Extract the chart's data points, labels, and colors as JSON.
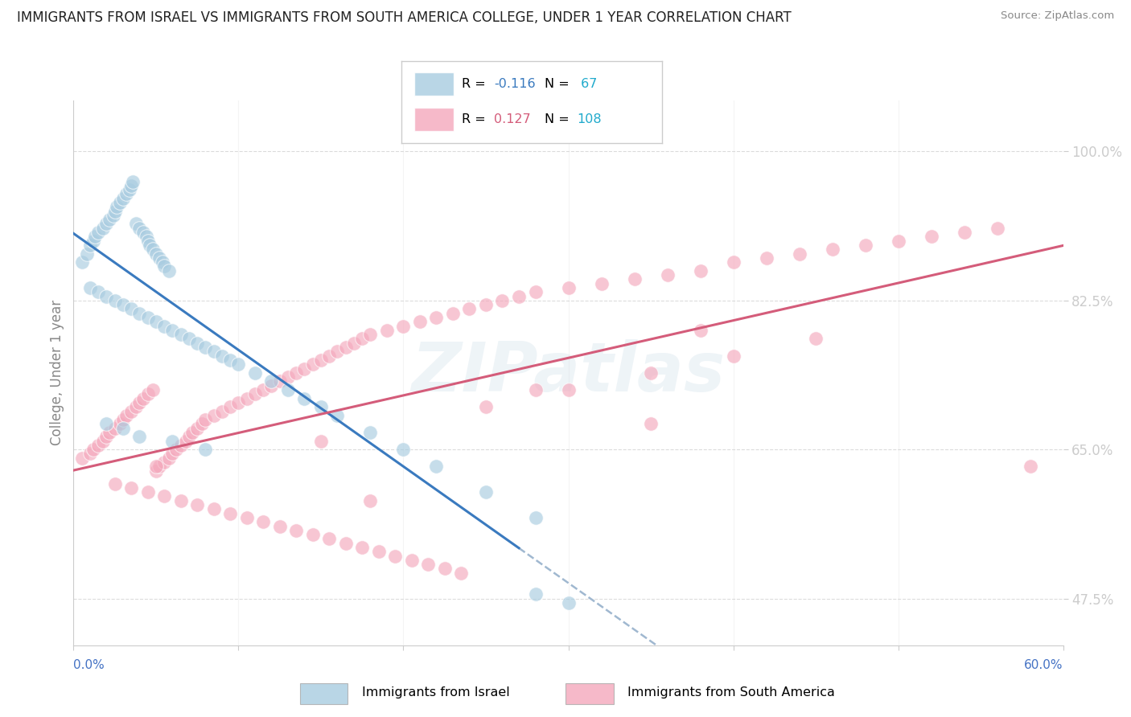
{
  "title": "IMMIGRANTS FROM ISRAEL VS IMMIGRANTS FROM SOUTH AMERICA COLLEGE, UNDER 1 YEAR CORRELATION CHART",
  "source": "Source: ZipAtlas.com",
  "ylabel": "College, Under 1 year",
  "yticks": [
    "47.5%",
    "65.0%",
    "82.5%",
    "100.0%"
  ],
  "ytick_values": [
    0.475,
    0.65,
    0.825,
    1.0
  ],
  "xlim": [
    0.0,
    0.6
  ],
  "ylim": [
    0.42,
    1.06
  ],
  "legend_blue_r": "-0.116",
  "legend_blue_n": "67",
  "legend_pink_r": "0.127",
  "legend_pink_n": "108",
  "blue_color": "#a8cce0",
  "pink_color": "#f4a8bc",
  "blue_line_color": "#3a7abf",
  "pink_line_color": "#d45c7a",
  "blue_dash_color": "#a0b8d0",
  "watermark_text": "ZIPatlas",
  "blue_scatter_x": [
    0.005,
    0.008,
    0.01,
    0.012,
    0.013,
    0.015,
    0.018,
    0.02,
    0.022,
    0.024,
    0.025,
    0.026,
    0.028,
    0.03,
    0.032,
    0.034,
    0.035,
    0.036,
    0.038,
    0.04,
    0.042,
    0.044,
    0.045,
    0.046,
    0.048,
    0.05,
    0.052,
    0.054,
    0.055,
    0.058,
    0.01,
    0.015,
    0.02,
    0.025,
    0.03,
    0.035,
    0.04,
    0.045,
    0.05,
    0.055,
    0.06,
    0.065,
    0.07,
    0.075,
    0.08,
    0.085,
    0.09,
    0.095,
    0.1,
    0.11,
    0.12,
    0.13,
    0.14,
    0.15,
    0.16,
    0.18,
    0.2,
    0.22,
    0.25,
    0.28,
    0.02,
    0.03,
    0.04,
    0.06,
    0.08,
    0.28,
    0.3
  ],
  "blue_scatter_y": [
    0.87,
    0.88,
    0.89,
    0.895,
    0.9,
    0.905,
    0.91,
    0.915,
    0.92,
    0.925,
    0.93,
    0.935,
    0.94,
    0.945,
    0.95,
    0.955,
    0.96,
    0.965,
    0.915,
    0.91,
    0.905,
    0.9,
    0.895,
    0.89,
    0.885,
    0.88,
    0.875,
    0.87,
    0.865,
    0.86,
    0.84,
    0.835,
    0.83,
    0.825,
    0.82,
    0.815,
    0.81,
    0.805,
    0.8,
    0.795,
    0.79,
    0.785,
    0.78,
    0.775,
    0.77,
    0.765,
    0.76,
    0.755,
    0.75,
    0.74,
    0.73,
    0.72,
    0.71,
    0.7,
    0.69,
    0.67,
    0.65,
    0.63,
    0.6,
    0.57,
    0.68,
    0.675,
    0.665,
    0.66,
    0.65,
    0.48,
    0.47
  ],
  "pink_scatter_x": [
    0.005,
    0.01,
    0.012,
    0.015,
    0.018,
    0.02,
    0.022,
    0.025,
    0.028,
    0.03,
    0.032,
    0.035,
    0.038,
    0.04,
    0.042,
    0.045,
    0.048,
    0.05,
    0.052,
    0.055,
    0.058,
    0.06,
    0.062,
    0.065,
    0.068,
    0.07,
    0.072,
    0.075,
    0.078,
    0.08,
    0.085,
    0.09,
    0.095,
    0.1,
    0.105,
    0.11,
    0.115,
    0.12,
    0.125,
    0.13,
    0.135,
    0.14,
    0.145,
    0.15,
    0.155,
    0.16,
    0.165,
    0.17,
    0.175,
    0.18,
    0.19,
    0.2,
    0.21,
    0.22,
    0.23,
    0.24,
    0.25,
    0.26,
    0.27,
    0.28,
    0.3,
    0.32,
    0.34,
    0.36,
    0.38,
    0.4,
    0.42,
    0.44,
    0.46,
    0.48,
    0.5,
    0.52,
    0.54,
    0.56,
    0.025,
    0.035,
    0.045,
    0.055,
    0.065,
    0.075,
    0.085,
    0.095,
    0.105,
    0.115,
    0.125,
    0.135,
    0.145,
    0.155,
    0.165,
    0.175,
    0.185,
    0.195,
    0.205,
    0.215,
    0.225,
    0.235,
    0.3,
    0.35,
    0.4,
    0.45,
    0.35,
    0.25,
    0.15,
    0.05,
    0.58,
    0.18,
    0.38,
    0.28
  ],
  "pink_scatter_y": [
    0.64,
    0.645,
    0.65,
    0.655,
    0.66,
    0.665,
    0.67,
    0.675,
    0.68,
    0.685,
    0.69,
    0.695,
    0.7,
    0.705,
    0.71,
    0.715,
    0.72,
    0.625,
    0.63,
    0.635,
    0.64,
    0.645,
    0.65,
    0.655,
    0.66,
    0.665,
    0.67,
    0.675,
    0.68,
    0.685,
    0.69,
    0.695,
    0.7,
    0.705,
    0.71,
    0.715,
    0.72,
    0.725,
    0.73,
    0.735,
    0.74,
    0.745,
    0.75,
    0.755,
    0.76,
    0.765,
    0.77,
    0.775,
    0.78,
    0.785,
    0.79,
    0.795,
    0.8,
    0.805,
    0.81,
    0.815,
    0.82,
    0.825,
    0.83,
    0.835,
    0.84,
    0.845,
    0.85,
    0.855,
    0.86,
    0.87,
    0.875,
    0.88,
    0.885,
    0.89,
    0.895,
    0.9,
    0.905,
    0.91,
    0.61,
    0.605,
    0.6,
    0.595,
    0.59,
    0.585,
    0.58,
    0.575,
    0.57,
    0.565,
    0.56,
    0.555,
    0.55,
    0.545,
    0.54,
    0.535,
    0.53,
    0.525,
    0.52,
    0.515,
    0.51,
    0.505,
    0.72,
    0.74,
    0.76,
    0.78,
    0.68,
    0.7,
    0.66,
    0.63,
    0.63,
    0.59,
    0.79,
    0.72
  ],
  "blue_line_x_start": 0.0,
  "blue_line_x_solid_end": 0.27,
  "blue_line_x_dash_end": 0.6,
  "pink_line_x_start": 0.0,
  "pink_line_x_end": 0.6
}
